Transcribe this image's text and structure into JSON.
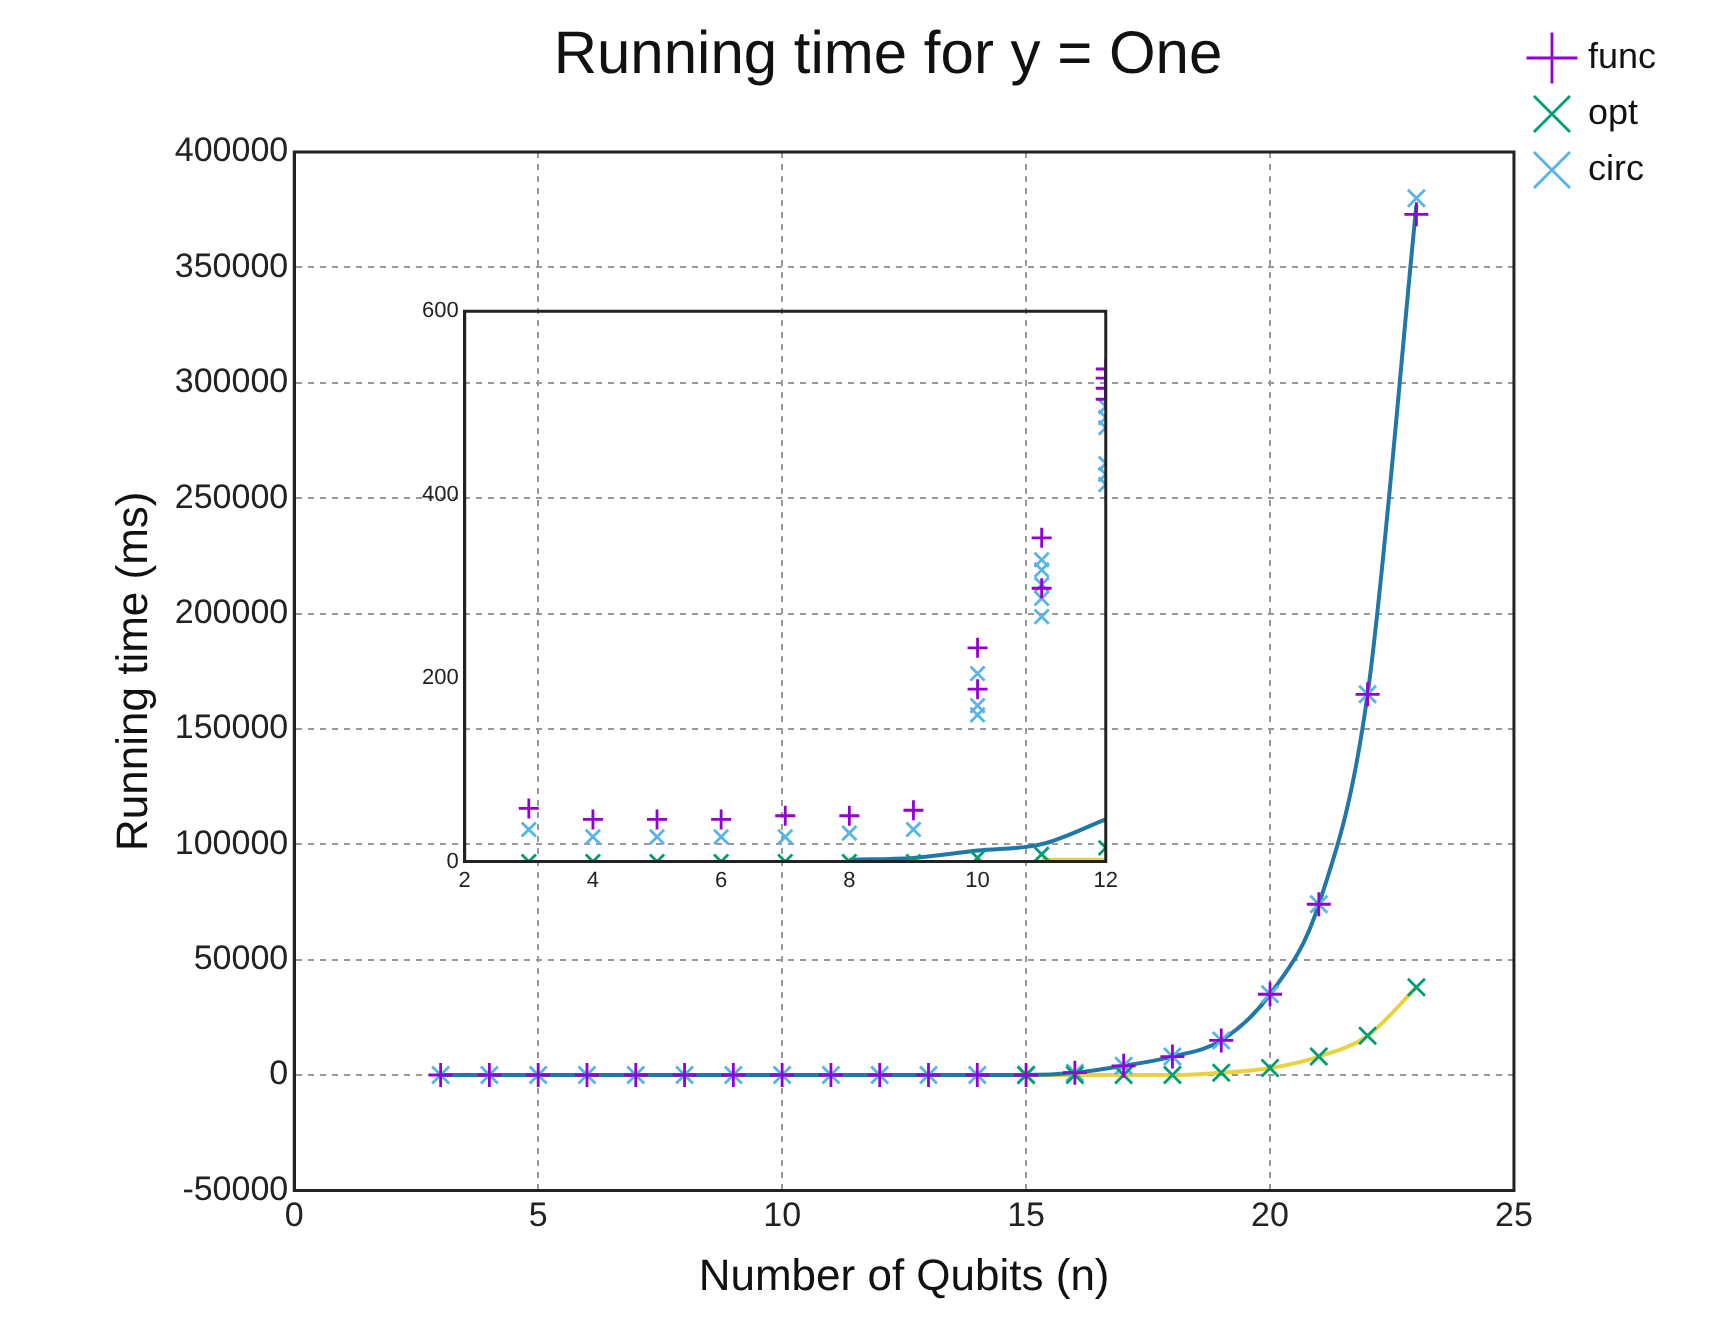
{
  "chart_data": [
    {
      "type": "scatter",
      "title": "Running time for y = One",
      "xlabel": "Number of Qubits (n)",
      "ylabel": "Running time (ms)",
      "xlim": [
        0,
        25
      ],
      "xticks": [
        0,
        5,
        10,
        15,
        20,
        25
      ],
      "ylim": [
        -50000,
        400000
      ],
      "yticks": [
        -50000,
        0,
        50000,
        100000,
        150000,
        200000,
        250000,
        300000,
        350000,
        400000
      ],
      "grid": true,
      "legend": "top right",
      "series": [
        {
          "name": "func",
          "color": "#9400d3",
          "marker": "plus",
          "x": [
            3,
            4,
            5,
            6,
            7,
            8,
            9,
            10,
            11,
            12,
            13,
            14,
            15,
            16,
            17,
            18,
            19,
            20,
            21,
            22,
            23
          ],
          "values": [
            0,
            0,
            0,
            0,
            0,
            0,
            0,
            0,
            0,
            0,
            0,
            0,
            0,
            1000,
            4000,
            8000,
            15000,
            35000,
            74000,
            165000,
            373000
          ]
        },
        {
          "name": "opt",
          "color": "#009e73",
          "marker": "cross",
          "x": [
            15,
            16,
            17,
            18,
            19,
            20,
            21,
            22,
            23
          ],
          "values": [
            0,
            0,
            0,
            0,
            1000,
            3000,
            8000,
            17000,
            38000
          ]
        },
        {
          "name": "circ",
          "color": "#56b4e9",
          "marker": "cross",
          "x": [
            3,
            4,
            5,
            6,
            7,
            8,
            9,
            10,
            11,
            12,
            13,
            14,
            15,
            16,
            17,
            18,
            19,
            20,
            21,
            22,
            23
          ],
          "values": [
            0,
            0,
            0,
            0,
            0,
            0,
            0,
            0,
            0,
            0,
            0,
            0,
            0,
            1000,
            4000,
            8000,
            15000,
            35000,
            74000,
            165000,
            380000
          ]
        },
        {
          "type": "line",
          "color": "#1f78a8",
          "marker": "none",
          "x": [
            3,
            4,
            5,
            6,
            7,
            8,
            9,
            10,
            11,
            12,
            13,
            14,
            15,
            16,
            17,
            18,
            19,
            20,
            21,
            22,
            23
          ],
          "values": [
            0,
            0,
            0,
            0,
            0,
            0,
            0,
            0,
            0,
            0,
            0,
            0,
            0,
            1000,
            4000,
            8000,
            15000,
            35000,
            74000,
            165000,
            377000
          ]
        },
        {
          "type": "line",
          "color": "#e8d33c",
          "marker": "none",
          "x": [
            15,
            16,
            17,
            18,
            19,
            20,
            21,
            22,
            23
          ],
          "values": [
            0,
            0,
            0,
            0,
            1000,
            3000,
            8000,
            17000,
            38000
          ]
        }
      ]
    },
    {
      "type": "scatter",
      "xlim": [
        2,
        12
      ],
      "xticks": [
        2,
        4,
        6,
        8,
        10,
        12
      ],
      "ylim": [
        0,
        600
      ],
      "yticks": [
        0,
        200,
        400,
        600
      ],
      "series": [
        {
          "color": "#9400d3",
          "marker": "plus",
          "x": [
            3,
            4,
            5,
            6,
            7,
            8,
            9,
            10,
            10,
            11,
            11,
            12,
            12,
            12,
            12
          ],
          "values": [
            58,
            46,
            46,
            46,
            50,
            50,
            56,
            233,
            188,
            353,
            298,
            537,
            527,
            516,
            504
          ]
        },
        {
          "color": "#009e73",
          "marker": "cross",
          "x": [
            3,
            4,
            5,
            6,
            7,
            8,
            9,
            10,
            11,
            12
          ],
          "values": [
            0,
            0,
            0,
            0,
            0,
            0,
            0,
            4,
            8,
            15
          ]
        },
        {
          "color": "#56b4e9",
          "marker": "cross",
          "x": [
            3,
            4,
            5,
            6,
            7,
            8,
            9,
            10,
            10,
            10,
            11,
            11,
            11,
            11,
            11,
            12,
            12,
            12,
            12,
            12,
            12
          ],
          "values": [
            35,
            27,
            27,
            27,
            27,
            31,
            35,
            205,
            170,
            160,
            329,
            318,
            302,
            287,
            267,
            496,
            484,
            473,
            434,
            422,
            411
          ]
        },
        {
          "type": "line",
          "color": "#1f78a8",
          "marker": "none",
          "x": [
            8,
            9,
            10,
            11,
            12
          ],
          "values": [
            2,
            4,
            12,
            19,
            46
          ]
        },
        {
          "type": "line",
          "color": "#e8d33c",
          "marker": "none",
          "x": [
            11,
            12
          ],
          "values": [
            2,
            2
          ]
        }
      ]
    }
  ]
}
